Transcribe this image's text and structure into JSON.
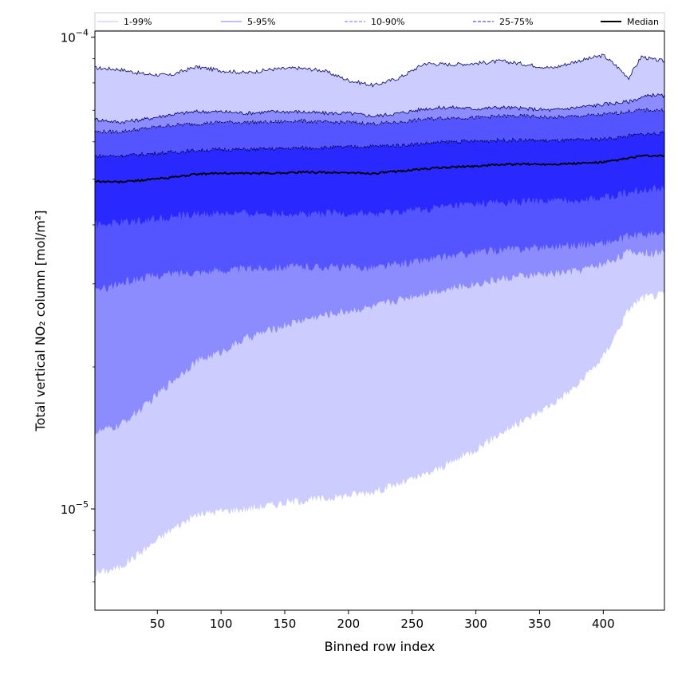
{
  "chart_data": {
    "type": "area",
    "title": "",
    "xlabel": "Binned row index",
    "ylabel": "Total vertical NO₂ column [mol/m²]",
    "yscale": "log",
    "xlim": [
      1,
      448
    ],
    "ylim": [
      6.1e-06,
      0.000103
    ],
    "grid": false,
    "legend_position": "top",
    "x_ticks": [
      50,
      100,
      150,
      200,
      250,
      300,
      350,
      400
    ],
    "x_tick_labels": [
      "50",
      "100",
      "150",
      "200",
      "250",
      "300",
      "350",
      "400"
    ],
    "y_major_ticks": [
      {
        "value": 1e-05,
        "base": "10",
        "exp": "−5"
      },
      {
        "value": 0.0001,
        "base": "10",
        "exp": "−4"
      }
    ],
    "x": [
      1,
      20,
      40,
      60,
      80,
      100,
      120,
      140,
      160,
      180,
      200,
      220,
      240,
      260,
      280,
      300,
      320,
      340,
      360,
      380,
      400,
      410,
      420,
      430,
      440,
      448
    ],
    "bands": [
      {
        "name": "1-99%",
        "color": "#ccccff",
        "line_color": "#000066",
        "line_style": "solid",
        "lower": [
          7.3e-06,
          7.5e-06,
          8.2e-06,
          9e-06,
          9.7e-06,
          9.9e-06,
          1e-05,
          1.02e-05,
          1.04e-05,
          1.05e-05,
          1.07e-05,
          1.09e-05,
          1.13e-05,
          1.18e-05,
          1.25e-05,
          1.34e-05,
          1.45e-05,
          1.55e-05,
          1.67e-05,
          1.83e-05,
          2.1e-05,
          2.35e-05,
          2.65e-05,
          2.8e-05,
          2.83e-05,
          2.85e-05
        ],
        "upper": [
          8.6e-05,
          8.55e-05,
          8.35e-05,
          8.3e-05,
          8.65e-05,
          8.5e-05,
          8.4e-05,
          8.55e-05,
          8.6e-05,
          8.5e-05,
          8.1e-05,
          7.9e-05,
          8.2e-05,
          8.8e-05,
          8.75e-05,
          8.8e-05,
          8.9e-05,
          8.75e-05,
          8.6e-05,
          8.9e-05,
          9.15e-05,
          8.7e-05,
          8.2e-05,
          9.1e-05,
          8.95e-05,
          8.9e-05
        ]
      },
      {
        "name": "5-95%",
        "color": "#8c8cff",
        "line_color": "#000066",
        "line_style": "solid",
        "lower": [
          1.45e-05,
          1.5e-05,
          1.65e-05,
          1.85e-05,
          2.05e-05,
          2.15e-05,
          2.3e-05,
          2.4e-05,
          2.5e-05,
          2.57e-05,
          2.63e-05,
          2.68e-05,
          2.78e-05,
          2.87e-05,
          2.93e-05,
          3e-05,
          3.07e-05,
          3.12e-05,
          3.15e-05,
          3.2e-05,
          3.3e-05,
          3.4e-05,
          3.5e-05,
          3.5e-05,
          3.47e-05,
          3.5e-05
        ],
        "upper": [
          6.7e-05,
          6.6e-05,
          6.7e-05,
          6.85e-05,
          6.95e-05,
          6.95e-05,
          6.9e-05,
          6.95e-05,
          6.95e-05,
          6.9e-05,
          6.9e-05,
          6.8e-05,
          6.9e-05,
          7.05e-05,
          7.1e-05,
          7.05e-05,
          7.1e-05,
          7.05e-05,
          7e-05,
          7.1e-05,
          7.2e-05,
          7.25e-05,
          7.3e-05,
          7.45e-05,
          7.55e-05,
          7.5e-05
        ]
      },
      {
        "name": "10-90%",
        "color": "#5555ff",
        "line_color": "#000033",
        "line_style": "dashed",
        "lower": [
          2.9e-05,
          3e-05,
          3.1e-05,
          3.15e-05,
          3.18e-05,
          3.2e-05,
          3.23e-05,
          3.25e-05,
          3.26e-05,
          3.26e-05,
          3.25e-05,
          3.25e-05,
          3.3e-05,
          3.37e-05,
          3.43e-05,
          3.5e-05,
          3.54e-05,
          3.57e-05,
          3.6e-05,
          3.63e-05,
          3.66e-05,
          3.7e-05,
          3.78e-05,
          3.82e-05,
          3.82e-05,
          3.82e-05
        ],
        "upper": [
          6.3e-05,
          6.3e-05,
          6.4e-05,
          6.5e-05,
          6.55e-05,
          6.6e-05,
          6.6e-05,
          6.6e-05,
          6.65e-05,
          6.6e-05,
          6.6e-05,
          6.55e-05,
          6.6e-05,
          6.7e-05,
          6.75e-05,
          6.75e-05,
          6.8e-05,
          6.8e-05,
          6.75e-05,
          6.8e-05,
          6.85e-05,
          6.9e-05,
          6.95e-05,
          7e-05,
          7e-05,
          7e-05
        ]
      },
      {
        "name": "25-75%",
        "color": "#2828ff",
        "line_color": "#000033",
        "line_style": "dashed",
        "lower": [
          4e-05,
          4.05e-05,
          4.1e-05,
          4.16e-05,
          4.21e-05,
          4.23e-05,
          4.23e-05,
          4.23e-05,
          4.23e-05,
          4.23e-05,
          4.23e-05,
          4.22e-05,
          4.26e-05,
          4.32e-05,
          4.38e-05,
          4.43e-05,
          4.46e-05,
          4.48e-05,
          4.5e-05,
          4.52e-05,
          4.56e-05,
          4.62e-05,
          4.7e-05,
          4.75e-05,
          4.78e-05,
          4.78e-05
        ],
        "upper": [
          5.6e-05,
          5.6e-05,
          5.65e-05,
          5.7e-05,
          5.75e-05,
          5.78e-05,
          5.78e-05,
          5.8e-05,
          5.82e-05,
          5.83e-05,
          5.85e-05,
          5.87e-05,
          5.9e-05,
          5.95e-05,
          6e-05,
          6.02e-05,
          6.05e-05,
          6.05e-05,
          6.03e-05,
          6.05e-05,
          6.08e-05,
          6.12e-05,
          6.18e-05,
          6.22e-05,
          6.25e-05,
          6.25e-05
        ]
      }
    ],
    "median": {
      "name": "Median",
      "color": "#000000",
      "values": [
        4.95e-05,
        4.93e-05,
        4.98e-05,
        5.04e-05,
        5.12e-05,
        5.15e-05,
        5.14e-05,
        5.15e-05,
        5.17e-05,
        5.17e-05,
        5.16e-05,
        5.14e-05,
        5.2e-05,
        5.26e-05,
        5.3e-05,
        5.33e-05,
        5.37e-05,
        5.38e-05,
        5.38e-05,
        5.4e-05,
        5.43e-05,
        5.48e-05,
        5.54e-05,
        5.6e-05,
        5.6e-05,
        5.6e-05
      ]
    },
    "legend": [
      {
        "label": "1-99%",
        "color": "#ccccff",
        "style": "solid"
      },
      {
        "label": "5-95%",
        "color": "#9999ff",
        "style": "solid"
      },
      {
        "label": "10-90%",
        "color": "#8c8cff",
        "style": "dashed"
      },
      {
        "label": "25-75%",
        "color": "#5555ff",
        "style": "dashed"
      },
      {
        "label": "Median",
        "color": "#000000",
        "style": "solid"
      }
    ]
  }
}
